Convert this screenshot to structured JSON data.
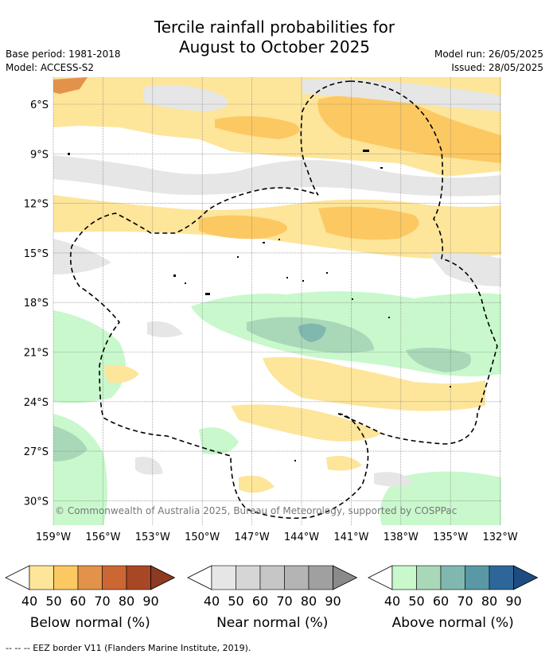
{
  "title_line1": "Tercile rainfall probabilities for",
  "title_line2": "August to October 2025",
  "base_period": "Base period: 1981-2018",
  "model": "Model: ACCESS-S2",
  "model_run": "Model run: 26/05/2025",
  "issued": "Issued: 28/05/2025",
  "lat_labels": [
    "6°S",
    "9°S",
    "12°S",
    "15°S",
    "18°S",
    "21°S",
    "24°S",
    "27°S",
    "30°S"
  ],
  "lon_labels": [
    "159°W",
    "156°W",
    "153°W",
    "150°W",
    "147°W",
    "144°W",
    "141°W",
    "138°W",
    "135°W",
    "132°W"
  ],
  "copyright": "© Commonwealth of Australia 2025, Bureau of Meteorology, supported by COSPPac",
  "footer": "-- -- -- EEZ border V11 (Flanders Marine Institute, 2019).",
  "colorbars": [
    {
      "title": "Below normal (%)",
      "ticks": [
        "40",
        "50",
        "60",
        "70",
        "80",
        "90"
      ],
      "colors": [
        "#fde59a",
        "#fcc862",
        "#e3924a",
        "#cc6633",
        "#a84726",
        "#8c3a20"
      ]
    },
    {
      "title": "Near normal (%)",
      "ticks": [
        "40",
        "50",
        "60",
        "70",
        "80",
        "90"
      ],
      "colors": [
        "#e6e6e6",
        "#d6d6d6",
        "#c6c6c6",
        "#b4b4b4",
        "#a0a0a0",
        "#8a8a8a"
      ]
    },
    {
      "title": "Above normal (%)",
      "ticks": [
        "40",
        "50",
        "60",
        "70",
        "80",
        "90"
      ],
      "colors": [
        "#c8f8cc",
        "#a8d8b8",
        "#80b8b0",
        "#5a98a6",
        "#2e6699",
        "#1e4c80"
      ]
    }
  ]
}
